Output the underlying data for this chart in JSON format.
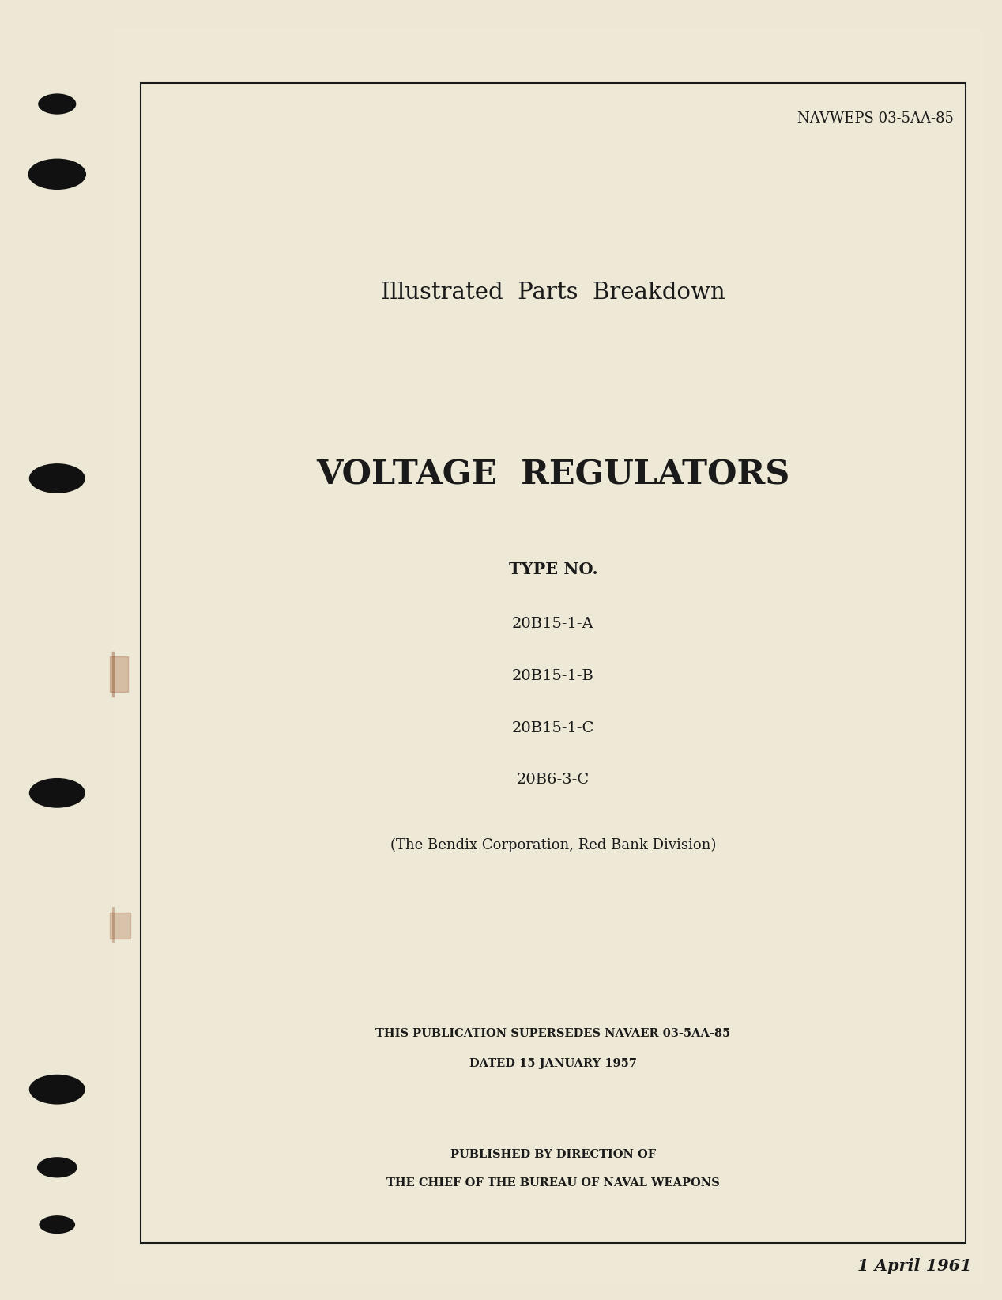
{
  "bg_color": "#ede8d5",
  "page_bg": "#eee9d6",
  "border_color": "#1a1a1a",
  "text_color": "#1a1a1a",
  "navweps": "NAVWEPS 03-5AA-85",
  "title1": "Illustrated  Parts  Breakdown",
  "title2": "VOLTAGE  REGULATORS",
  "type_no_label": "TYPE NO.",
  "type_numbers": [
    "20B15-1-A",
    "20B15-1-B",
    "20B15-1-C",
    "20B6-3-C"
  ],
  "company": "(The Bendix Corporation, Red Bank Division)",
  "supersedes_line1": "THIS PUBLICATION SUPERSEDES NAVAER 03-5AA-85",
  "supersedes_line2": "DATED 15 JANUARY 1957",
  "published_line1": "PUBLISHED BY DIRECTION OF",
  "published_line2": "THE CHIEF OF THE BUREAU OF NAVAL WEAPONS",
  "date": "1 April 1961",
  "hole_color": "#111111"
}
